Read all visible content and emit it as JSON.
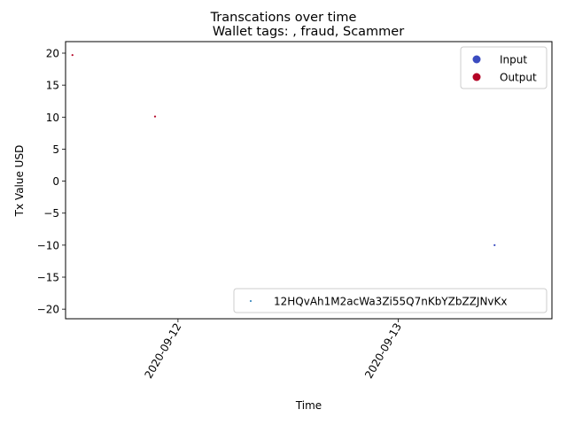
{
  "chart_data": {
    "type": "scatter",
    "suptitle": "Transcations over time",
    "title": "Wallet tags: , fraud, Scammer",
    "xlabel": "Time",
    "ylabel": "Tx Value USD",
    "x_ticks": [
      "2020-09-12",
      "2020-09-13"
    ],
    "y_ticks": [
      20,
      15,
      10,
      5,
      0,
      -5,
      -10,
      -15,
      -20
    ],
    "y_tick_labels": [
      "20",
      "15",
      "10",
      "5",
      "0",
      "−5",
      "−10",
      "−15",
      "−20"
    ],
    "xlim": [
      "2020-09-11 11:45",
      "2020-09-13 16:45"
    ],
    "ylim": [
      -21.5,
      21.8
    ],
    "grid": false,
    "points": [
      {
        "x": "2020-09-11 12:30",
        "y": 19.7,
        "direction": "Output",
        "color": "#b40426"
      },
      {
        "x": "2020-09-11 21:30",
        "y": 10.1,
        "direction": "Output",
        "color": "#b40426"
      },
      {
        "x": "2020-09-13 10:30",
        "y": -10.0,
        "direction": "Input",
        "color": "#3b4cc0"
      }
    ],
    "color_legend": {
      "placement": "top-right",
      "entries": [
        {
          "label": "Input",
          "color": "#3b4cc0"
        },
        {
          "label": "Output",
          "color": "#b40426"
        }
      ]
    },
    "series_legend": {
      "placement": "bottom-right",
      "entries": [
        {
          "label": "12HQvAh1M2acWa3Zi55Q7nKbYZbZZJNvKx",
          "color": "#1f77b4"
        }
      ]
    }
  }
}
